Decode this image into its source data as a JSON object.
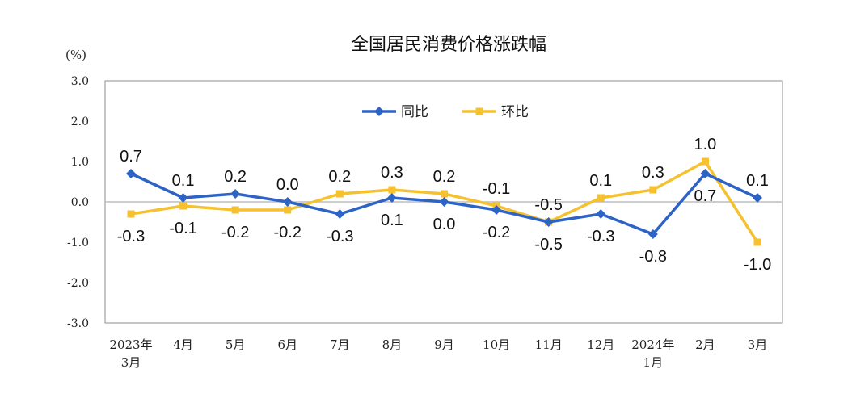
{
  "chart_data": {
    "type": "line",
    "title": "全国居民消费价格涨跌幅",
    "ylabel": "(%)",
    "xlabel": "",
    "ylim": [
      -3.0,
      3.0
    ],
    "yticks": [
      "3.0",
      "2.0",
      "1.0",
      "0.0",
      "-1.0",
      "-2.0",
      "-3.0"
    ],
    "categories": [
      [
        "2023年",
        "3月"
      ],
      [
        "4月"
      ],
      [
        "5月"
      ],
      [
        "6月"
      ],
      [
        "7月"
      ],
      [
        "8月"
      ],
      [
        "9月"
      ],
      [
        "10月"
      ],
      [
        "11月"
      ],
      [
        "12月"
      ],
      [
        "2024年",
        "1月"
      ],
      [
        "2月"
      ],
      [
        "3月"
      ]
    ],
    "series": [
      {
        "name": "同比",
        "color": "#2e63c6",
        "marker": "diamond",
        "values": [
          0.7,
          0.1,
          0.2,
          0.0,
          -0.3,
          0.1,
          0.0,
          -0.2,
          -0.5,
          -0.3,
          -0.8,
          0.7,
          0.1
        ],
        "labels": [
          "0.7",
          "0.1",
          "0.2",
          "0.0",
          "-0.3",
          "0.1",
          "0.0",
          "-0.2",
          "-0.5",
          "-0.3",
          "-0.8",
          "0.7",
          "0.1"
        ],
        "label_side": [
          "above",
          "above",
          "above",
          "above",
          "below",
          "below",
          "below",
          "below",
          "below",
          "below",
          "below",
          "below",
          "above"
        ]
      },
      {
        "name": "环比",
        "color": "#f5c12e",
        "marker": "square",
        "values": [
          -0.3,
          -0.1,
          -0.2,
          -0.2,
          0.2,
          0.3,
          0.2,
          -0.1,
          -0.5,
          0.1,
          0.3,
          1.0,
          -1.0
        ],
        "labels": [
          "-0.3",
          "-0.1",
          "-0.2",
          "-0.2",
          "0.2",
          "0.3",
          "0.2",
          "-0.1",
          "-0.5",
          "0.1",
          "0.3",
          "1.0",
          "-1.0"
        ],
        "label_side": [
          "below",
          "below",
          "below",
          "below",
          "above",
          "above",
          "above",
          "above",
          "above",
          "above",
          "above",
          "above",
          "below"
        ]
      }
    ],
    "legend": {
      "position": "top-center"
    },
    "grid": false
  }
}
